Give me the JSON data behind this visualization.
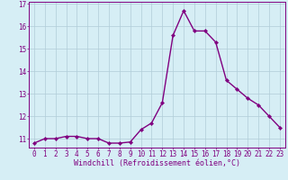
{
  "x": [
    0,
    1,
    2,
    3,
    4,
    5,
    6,
    7,
    8,
    9,
    10,
    11,
    12,
    13,
    14,
    15,
    16,
    17,
    18,
    19,
    20,
    21,
    22,
    23
  ],
  "y": [
    10.8,
    11.0,
    11.0,
    11.1,
    11.1,
    11.0,
    11.0,
    10.8,
    10.8,
    10.85,
    11.4,
    11.7,
    12.6,
    15.6,
    16.7,
    15.8,
    15.8,
    15.3,
    13.6,
    13.2,
    12.8,
    12.5,
    12.0,
    11.5
  ],
  "line_color": "#800080",
  "marker": "D",
  "marker_size": 2.2,
  "bg_color": "#d6eef5",
  "grid_color": "#b0ccd8",
  "xlabel": "Windchill (Refroidissement éolien,°C)",
  "xlabel_fontsize": 6.0,
  "ylabel_ticks": [
    11,
    12,
    13,
    14,
    15,
    16,
    17
  ],
  "xtick_labels": [
    "0",
    "1",
    "2",
    "3",
    "4",
    "5",
    "6",
    "7",
    "8",
    "9",
    "10",
    "11",
    "12",
    "13",
    "14",
    "15",
    "16",
    "17",
    "18",
    "19",
    "20",
    "21",
    "22",
    "23"
  ],
  "xlim": [
    -0.5,
    23.5
  ],
  "ylim": [
    10.6,
    17.1
  ],
  "tick_color": "#800080",
  "tick_fontsize": 5.5,
  "spine_color": "#800080",
  "linewidth": 1.0
}
